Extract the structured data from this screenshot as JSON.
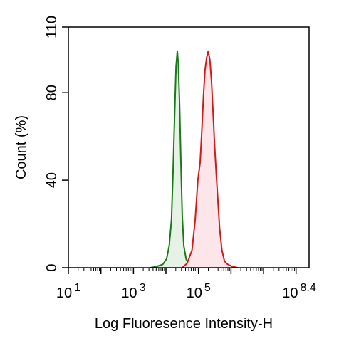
{
  "chart_data": {
    "type": "area",
    "title": "",
    "xlabel": "Log Fluoresence Intensity-H",
    "ylabel": "Count  (%)",
    "x_scale": "log10",
    "xlim": [
      1,
      8.4
    ],
    "ylim": [
      0,
      110
    ],
    "x_ticks": [
      {
        "value": 1,
        "base": "10",
        "exp": "1"
      },
      {
        "value": 3,
        "base": "10",
        "exp": "3"
      },
      {
        "value": 5,
        "base": "10",
        "exp": "5"
      },
      {
        "value": 8.4,
        "base": "10",
        "exp": "8.4"
      }
    ],
    "y_ticks": [
      {
        "value": 0,
        "label": "0"
      },
      {
        "value": 40,
        "label": "40"
      },
      {
        "value": 80,
        "label": "80"
      },
      {
        "value": 110,
        "label": "110"
      }
    ],
    "grid": false,
    "legend": "none",
    "series": [
      {
        "color": "#1a7a1a",
        "fill": "#e6f2e6",
        "x": [
          3.52,
          3.7,
          3.9,
          4.02,
          4.1,
          4.17,
          4.22,
          4.27,
          4.31,
          4.35,
          4.38,
          4.42,
          4.46,
          4.5,
          4.55,
          4.62,
          4.7,
          4.8,
          4.9
        ],
        "y": [
          0,
          0.5,
          1.5,
          4,
          10,
          22,
          45,
          72,
          92,
          99,
          93,
          74,
          48,
          24,
          10,
          4,
          1.5,
          0.5,
          0
        ]
      },
      {
        "color": "#d11a1a",
        "fill": "#fde6ea",
        "x": [
          4.5,
          4.65,
          4.8,
          4.9,
          4.98,
          5.05,
          5.1,
          5.15,
          5.2,
          5.25,
          5.3,
          5.35,
          5.4,
          5.45,
          5.5,
          5.55,
          5.6,
          5.65,
          5.72,
          5.8,
          5.9,
          6.05,
          6.2
        ],
        "y": [
          0,
          2,
          8,
          22,
          40,
          48,
          62,
          78,
          90,
          96,
          99,
          95,
          85,
          70,
          55,
          42,
          30,
          18,
          8,
          3,
          1.5,
          0.5,
          0
        ]
      }
    ]
  }
}
